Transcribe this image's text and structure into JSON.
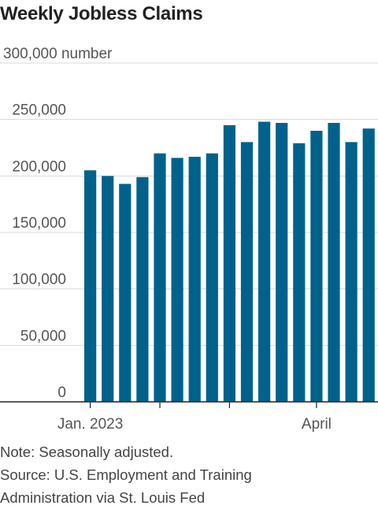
{
  "chart_data": {
    "type": "bar",
    "title": "Weekly Jobless Claims",
    "ylabel_unit": "number",
    "ylim": [
      0,
      300000
    ],
    "yticks": [
      0,
      50000,
      100000,
      150000,
      200000,
      250000,
      300000
    ],
    "ytick_labels": [
      "0",
      "50,000",
      "100,000",
      "150,000",
      "200,000",
      "250,000",
      "300,000"
    ],
    "xtick_labels": [
      {
        "label": "Jan. 2023",
        "index": 0
      },
      {
        "label": "April",
        "index": 13
      }
    ],
    "values": [
      205000,
      200000,
      193000,
      199000,
      220000,
      216000,
      217000,
      220000,
      245000,
      230000,
      248000,
      247000,
      229000,
      240000,
      247000,
      230000,
      242000
    ],
    "bar_color": "#00628b",
    "grid": true
  },
  "notes": {
    "note": "Note: Seasonally adjusted.",
    "source_line1": "Source: U.S. Employment and Training",
    "source_line2": "Administration via St. Louis Fed"
  }
}
